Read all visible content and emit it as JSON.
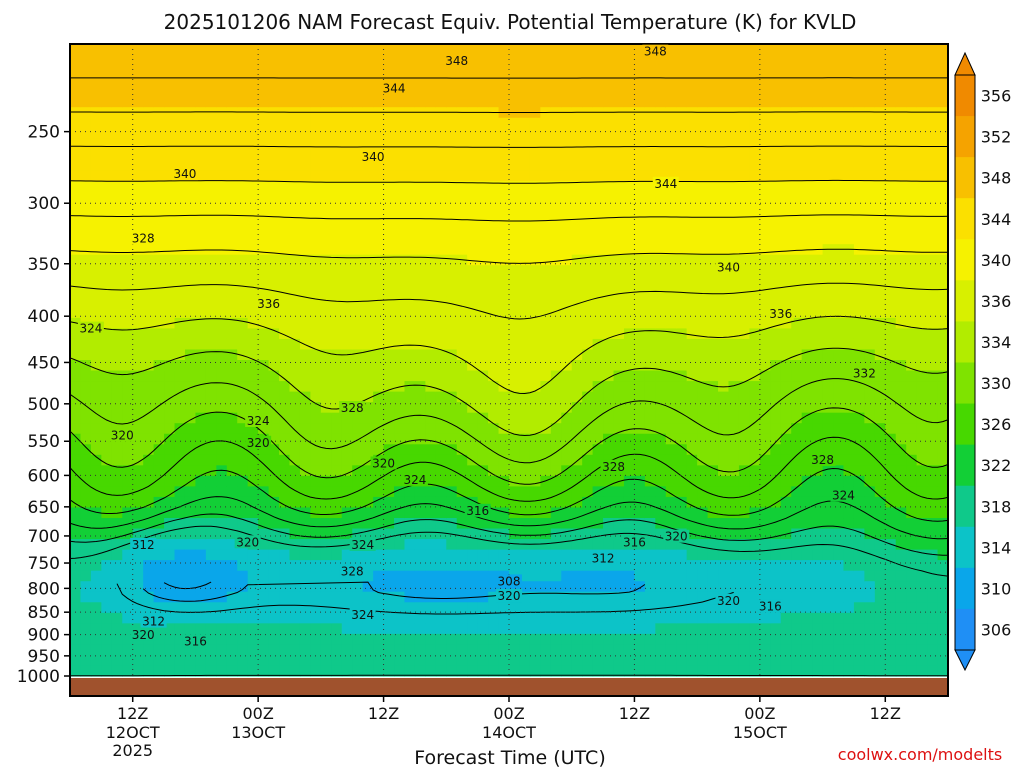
{
  "chart_data": {
    "type": "heatmap",
    "title": "2025101206 NAM Forecast Equiv. Potential Temperature (K) for KVLD",
    "xlabel": "Forecast Time (UTC)",
    "ylabel": "",
    "credit": "coolwx.com/modelts",
    "y_scale": "pressure (log-like, inverted)",
    "ylim": [
      1000,
      200
    ],
    "y_ticks": [
      250,
      300,
      350,
      400,
      450,
      500,
      550,
      600,
      650,
      700,
      750,
      800,
      850,
      900,
      950,
      1000
    ],
    "x_ticks": [
      {
        "t": 6,
        "label": "12Z",
        "sub1": "12OCT",
        "sub2": "2025"
      },
      {
        "t": 18,
        "label": "00Z",
        "sub1": "13OCT",
        "sub2": ""
      },
      {
        "t": 30,
        "label": "12Z",
        "sub1": "",
        "sub2": ""
      },
      {
        "t": 42,
        "label": "00Z",
        "sub1": "14OCT",
        "sub2": ""
      },
      {
        "t": 54,
        "label": "12Z",
        "sub1": "",
        "sub2": ""
      },
      {
        "t": 66,
        "label": "00Z",
        "sub1": "15OCT",
        "sub2": ""
      },
      {
        "t": 78,
        "label": "12Z",
        "sub1": "",
        "sub2": ""
      }
    ],
    "xlim": [
      0,
      84
    ],
    "colorbar": {
      "labels": [
        356,
        352,
        348,
        344,
        340,
        336,
        334,
        330,
        326,
        322,
        318,
        314,
        310,
        306
      ],
      "colors": [
        "#f08a00",
        "#f5a300",
        "#f8c000",
        "#fbe000",
        "#f6f200",
        "#d8f000",
        "#b2ec00",
        "#7fe300",
        "#47d800",
        "#12cf36",
        "#0fc98a",
        "#0cc3c8",
        "#0aa6ea",
        "#1f8ff5"
      ]
    },
    "surface_color": "#a0522d",
    "contour_labels": [
      {
        "text": "348",
        "t": 37,
        "p": 210
      },
      {
        "text": "348",
        "t": 56,
        "p": 205
      },
      {
        "text": "344",
        "t": 31,
        "p": 225
      },
      {
        "text": "344",
        "t": 57,
        "p": 287
      },
      {
        "text": "340",
        "t": 11,
        "p": 280
      },
      {
        "text": "340",
        "t": 29,
        "p": 268
      },
      {
        "text": "340",
        "t": 63,
        "p": 355
      },
      {
        "text": "328",
        "t": 7,
        "p": 330
      },
      {
        "text": "336",
        "t": 19,
        "p": 390
      },
      {
        "text": "336",
        "t": 68,
        "p": 400
      },
      {
        "text": "324",
        "t": 2,
        "p": 415
      },
      {
        "text": "332",
        "t": 76,
        "p": 465
      },
      {
        "text": "328",
        "t": 27,
        "p": 508
      },
      {
        "text": "320",
        "t": 5,
        "p": 545
      },
      {
        "text": "324",
        "t": 18,
        "p": 525
      },
      {
        "text": "320",
        "t": 18,
        "p": 555
      },
      {
        "text": "320",
        "t": 30,
        "p": 585
      },
      {
        "text": "324",
        "t": 33,
        "p": 610
      },
      {
        "text": "328",
        "t": 52,
        "p": 590
      },
      {
        "text": "328",
        "t": 72,
        "p": 580
      },
      {
        "text": "324",
        "t": 74,
        "p": 635
      },
      {
        "text": "316",
        "t": 39,
        "p": 660
      },
      {
        "text": "320",
        "t": 58,
        "p": 705
      },
      {
        "text": "316",
        "t": 54,
        "p": 715
      },
      {
        "text": "312",
        "t": 7,
        "p": 720
      },
      {
        "text": "320",
        "t": 17,
        "p": 715
      },
      {
        "text": "324",
        "t": 28,
        "p": 720
      },
      {
        "text": "312",
        "t": 51,
        "p": 745
      },
      {
        "text": "328",
        "t": 27,
        "p": 770
      },
      {
        "text": "308",
        "t": 42,
        "p": 790
      },
      {
        "text": "320",
        "t": 42,
        "p": 820
      },
      {
        "text": "320",
        "t": 63,
        "p": 830
      },
      {
        "text": "316",
        "t": 67,
        "p": 842
      },
      {
        "text": "324",
        "t": 28,
        "p": 860
      },
      {
        "text": "312",
        "t": 8,
        "p": 875
      },
      {
        "text": "320",
        "t": 7,
        "p": 905
      },
      {
        "text": "316",
        "t": 12,
        "p": 920
      }
    ]
  }
}
